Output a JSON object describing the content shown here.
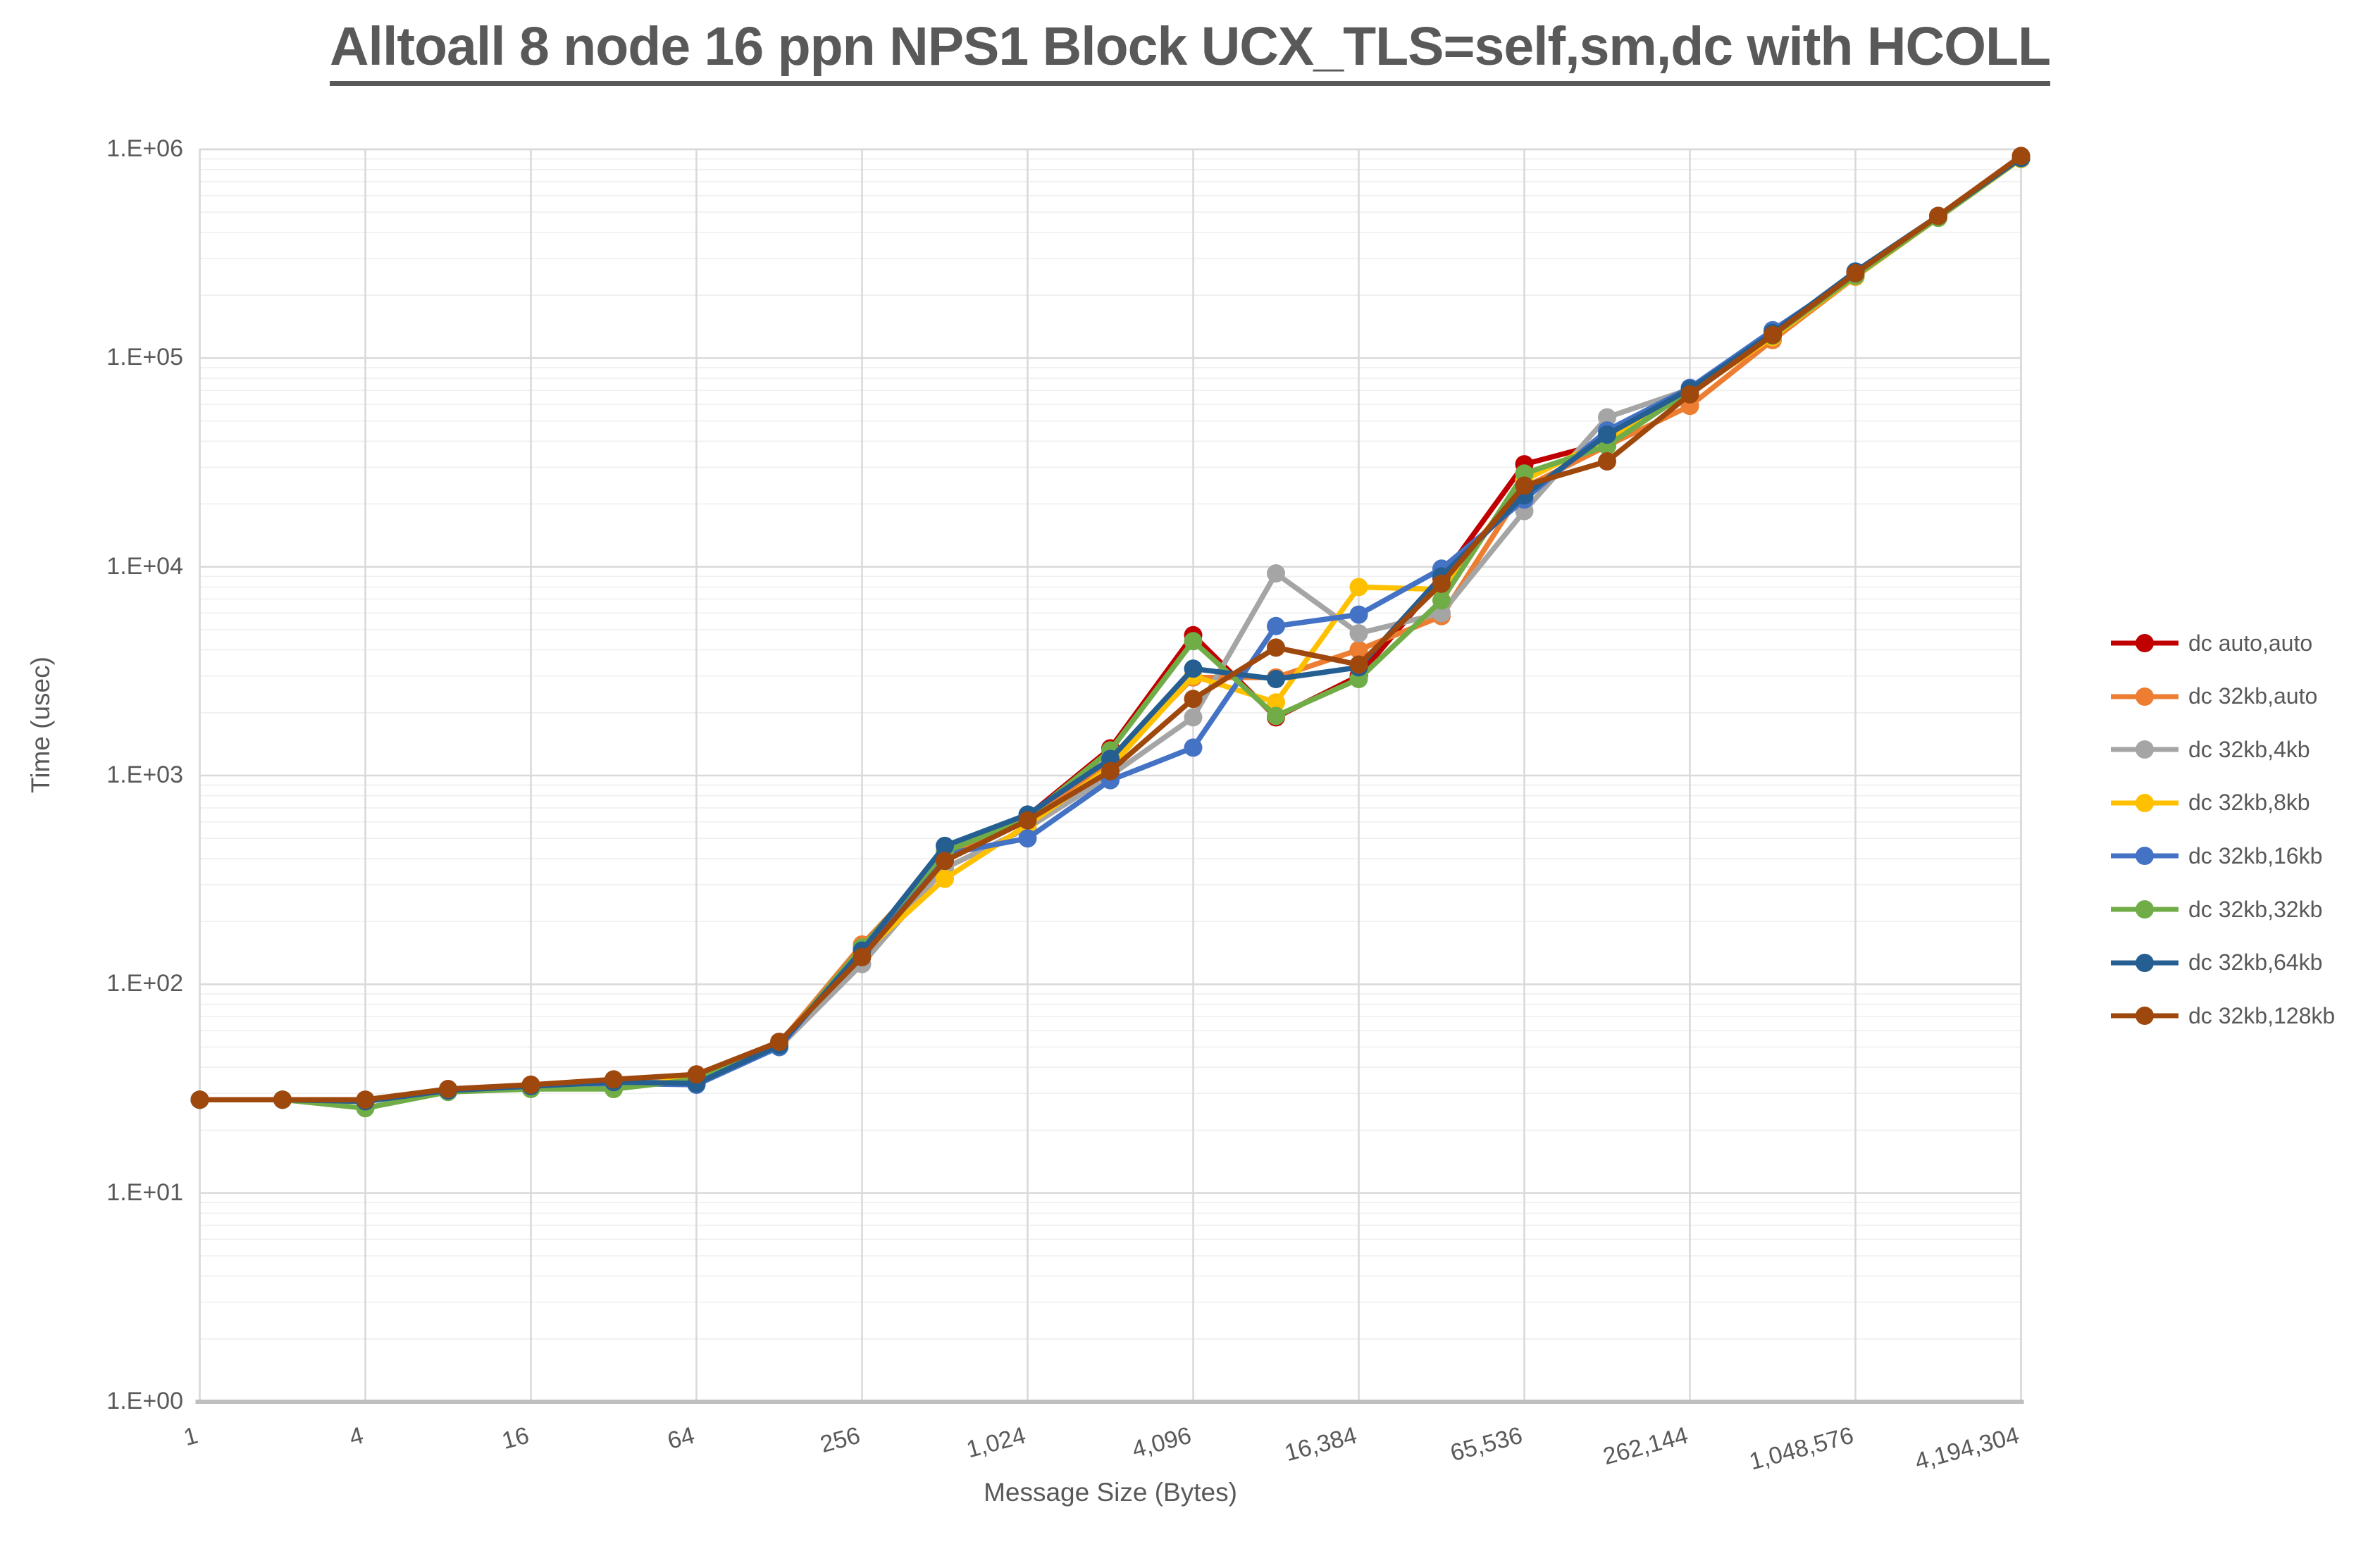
{
  "title": {
    "text": "Alltoall 8 node 16 ppn NPS1 Block UCX_TLS=self,sm,dc with HCOLL"
  },
  "axes": {
    "x": {
      "title": "Message Size (Bytes)",
      "tick_labels": [
        "1",
        "4",
        "16",
        "64",
        "256",
        "1,024",
        "4,096",
        "16,384",
        "65,536",
        "262,144",
        "1,048,576",
        "4,194,304"
      ],
      "tick_values": [
        1,
        4,
        16,
        64,
        256,
        1024,
        4096,
        16384,
        65536,
        262144,
        1048576,
        4194304
      ]
    },
    "y": {
      "title": "Time (usec)",
      "tick_labels": [
        "1.E+00",
        "1.E+01",
        "1.E+02",
        "1.E+03",
        "1.E+04",
        "1.E+05",
        "1.E+06"
      ],
      "tick_values": [
        1,
        10,
        100,
        1000,
        10000,
        100000,
        1000000
      ]
    }
  },
  "chart_data": {
    "type": "line",
    "title": "Alltoall 8 node 16 ppn NPS1 Block UCX_TLS=self,sm,dc with HCOLL",
    "xlabel": "Message Size (Bytes)",
    "ylabel": "Time (usec)",
    "x_scale": "log2",
    "y_scale": "log10",
    "xlim": [
      1,
      4194304
    ],
    "ylim": [
      1,
      1000000
    ],
    "grid": "on",
    "legend_position": "right",
    "x": [
      1,
      2,
      4,
      8,
      16,
      32,
      64,
      128,
      256,
      512,
      1024,
      2048,
      4096,
      8192,
      16384,
      32768,
      65536,
      131072,
      262144,
      524288,
      1048576,
      2097152,
      4194304
    ],
    "series": [
      {
        "name": "dc auto,auto",
        "color": "#C00000",
        "values": [
          28,
          28,
          28,
          31,
          33,
          34,
          36,
          52,
          142,
          395,
          640,
          1350,
          4700,
          1900,
          3000,
          8800,
          31000,
          39500,
          69000,
          127000,
          250000,
          475000,
          920000
        ]
      },
      {
        "name": "dc 32kb,auto",
        "color": "#ED7D31",
        "values": [
          28,
          28,
          27.5,
          31,
          32.5,
          34,
          36,
          52,
          155,
          410,
          620,
          1150,
          2950,
          2950,
          4000,
          5800,
          24000,
          38000,
          59000,
          122000,
          245000,
          470000,
          900000
        ]
      },
      {
        "name": "dc 32kb,4kb",
        "color": "#A5A5A5",
        "values": [
          28,
          28,
          27.5,
          31,
          32.5,
          34,
          35,
          50,
          125,
          360,
          560,
          1000,
          1900,
          9300,
          4800,
          6000,
          18500,
          52000,
          71000,
          130000,
          248000,
          472000,
          900000
        ]
      },
      {
        "name": "dc 32kb,8kb",
        "color": "#FFC000",
        "values": [
          28,
          28,
          27.5,
          31,
          32,
          31.5,
          36,
          52,
          140,
          320,
          580,
          1100,
          3000,
          2240,
          8000,
          7800,
          26000,
          41000,
          68000,
          126000,
          246000,
          470000,
          900000
        ]
      },
      {
        "name": "dc 32kb,16kb",
        "color": "#4472C4",
        "values": [
          28,
          28,
          27.5,
          31,
          32,
          33.5,
          33,
          50,
          148,
          420,
          500,
          950,
          1360,
          5200,
          5900,
          9800,
          21000,
          45000,
          72000,
          136000,
          250000,
          478000,
          910000
        ]
      },
      {
        "name": "dc 32kb,32kb",
        "color": "#70AD47",
        "values": [
          28,
          28,
          25.5,
          30.5,
          31.5,
          31.5,
          35,
          51,
          150,
          430,
          630,
          1320,
          4400,
          1930,
          2900,
          6900,
          28000,
          38000,
          70000,
          128000,
          248000,
          470000,
          905000
        ]
      },
      {
        "name": "dc 32kb,64kb",
        "color": "#255E91",
        "values": [
          28,
          28,
          27.5,
          31,
          32.5,
          34,
          33.5,
          51,
          145,
          460,
          650,
          1200,
          3250,
          2900,
          3300,
          9000,
          22000,
          43000,
          71000,
          132000,
          260000,
          480000,
          910000
        ]
      },
      {
        "name": "dc 32kb,128kb",
        "color": "#9E480E",
        "values": [
          28,
          28,
          28,
          31.5,
          33,
          35,
          37,
          53,
          135,
          390,
          610,
          1050,
          2330,
          4100,
          3400,
          8300,
          24500,
          32000,
          67000,
          129000,
          255000,
          480000,
          930000
        ]
      }
    ]
  },
  "style_colors": {
    "text_gray": "#595959",
    "gridline_major": "#D9D9D9",
    "gridline_minor": "#EFEFEF",
    "axis_line": "#BFBFBF",
    "background": "#FFFFFF"
  }
}
